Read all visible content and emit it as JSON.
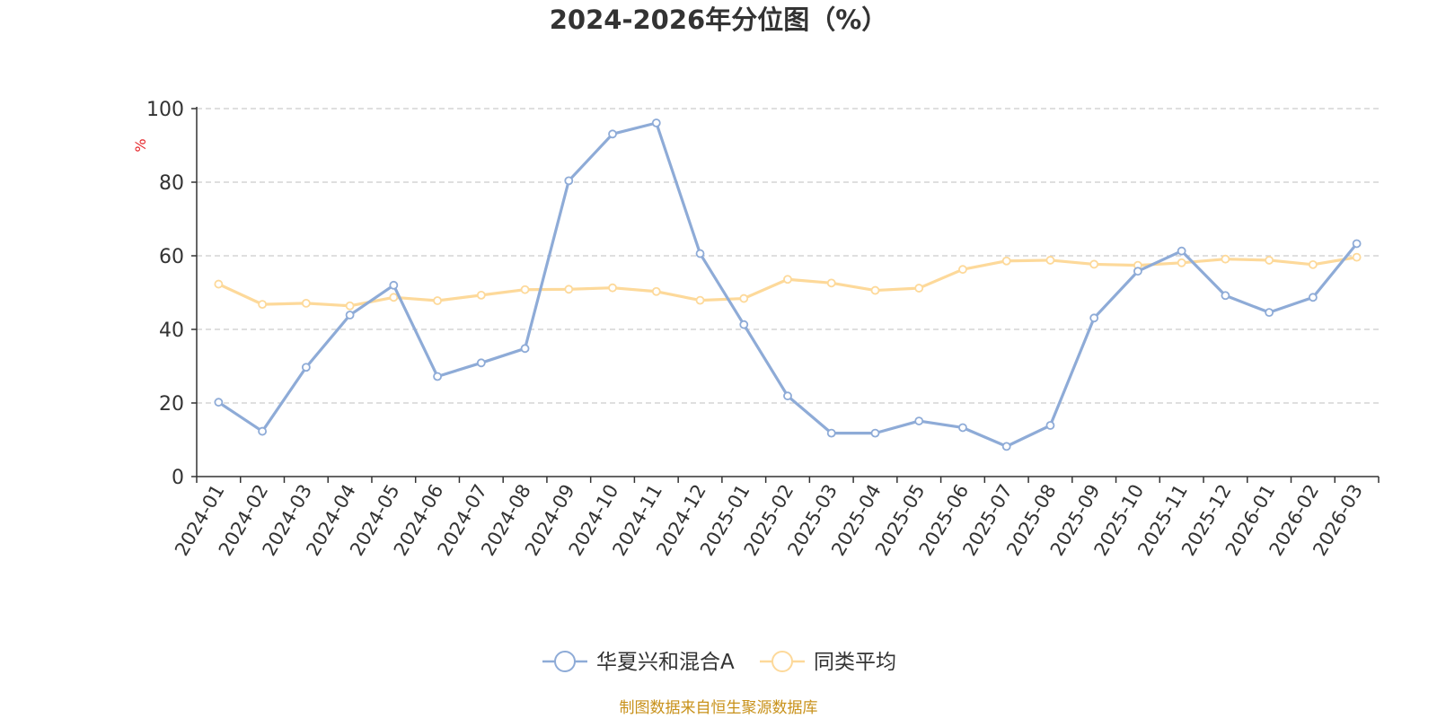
{
  "chart_data": {
    "type": "line",
    "title": "2024-2026年分位图（%）",
    "ylabel": "%",
    "xlabel": "",
    "ylim": [
      0,
      100
    ],
    "yticks": [
      0,
      20,
      40,
      60,
      80,
      100
    ],
    "grid": true,
    "legend_position": "bottom-center",
    "categories": [
      "2024-01",
      "2024-02",
      "2024-03",
      "2024-04",
      "2024-05",
      "2024-06",
      "2024-07",
      "2024-08",
      "2024-09",
      "2024-10",
      "2024-11",
      "2024-12",
      "2025-01",
      "2025-02",
      "2025-03",
      "2025-04",
      "2025-05",
      "2025-06",
      "2025-07",
      "2025-08",
      "2025-09",
      "2025-10",
      "2025-11",
      "2025-12",
      "2026-01",
      "2026-02",
      "2026-03"
    ],
    "series": [
      {
        "name": "华夏兴和混合A",
        "color": "#8eabd7",
        "values": [
          20.2,
          12.3,
          29.7,
          43.9,
          52.0,
          27.2,
          30.9,
          34.8,
          80.4,
          93.1,
          96.1,
          60.6,
          41.3,
          21.9,
          11.8,
          11.8,
          15.1,
          13.3,
          8.2,
          13.9,
          43.1,
          55.8,
          61.3,
          49.2,
          44.6,
          48.7,
          63.3
        ]
      },
      {
        "name": "同类平均",
        "color": "#fdd99a",
        "values": [
          52.3,
          46.8,
          47.1,
          46.4,
          48.7,
          47.8,
          49.3,
          50.8,
          50.9,
          51.3,
          50.3,
          47.9,
          48.4,
          53.6,
          52.6,
          50.6,
          51.2,
          56.3,
          58.6,
          58.8,
          57.7,
          57.4,
          58.1,
          59.1,
          58.8,
          57.6,
          59.6
        ]
      }
    ]
  },
  "source_note": "制图数据来自恒生聚源数据库",
  "colors": {
    "axis": "#333333",
    "grid": "#cccccc",
    "tick_label": "#333333",
    "ylabel": "#e5252a"
  }
}
